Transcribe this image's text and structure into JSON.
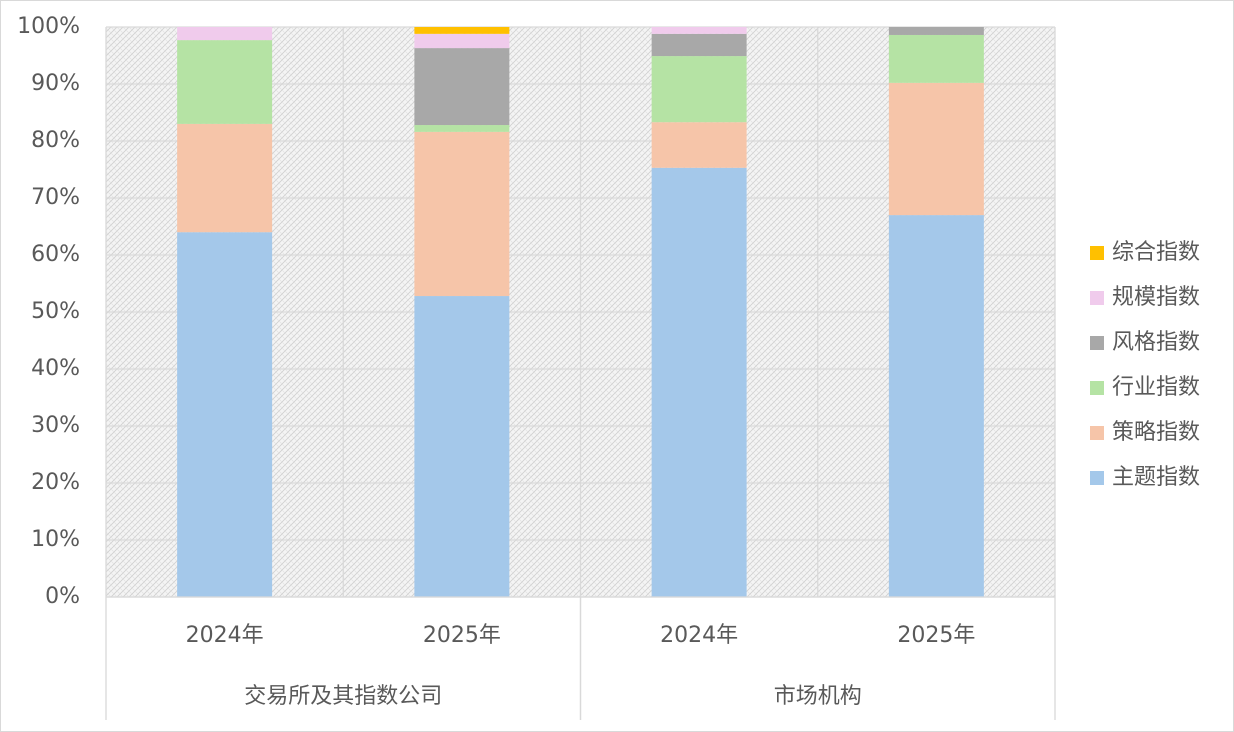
{
  "chart_data": {
    "type": "stacked_bar",
    "groups": [
      {
        "label": "交易所及其指数公司",
        "categories": [
          "2024年",
          "2025年"
        ]
      },
      {
        "label": "市场机构",
        "categories": [
          "2024年",
          "2025年"
        ]
      }
    ],
    "series": [
      {
        "name": "主题指数",
        "color": "#a4c8ea",
        "values": [
          64.0,
          52.8,
          75.3,
          67.0
        ]
      },
      {
        "name": "策略指数",
        "color": "#f6c5a9",
        "values": [
          19.0,
          28.8,
          8.0,
          23.2
        ]
      },
      {
        "name": "行业指数",
        "color": "#b5e3a4",
        "values": [
          14.7,
          1.2,
          11.6,
          8.4
        ]
      },
      {
        "name": "风格指数",
        "color": "#a8a8a8",
        "values": [
          0,
          13.5,
          3.9,
          1.4
        ]
      },
      {
        "name": "规模指数",
        "color": "#f0cbec",
        "values": [
          2.3,
          2.5,
          1.2,
          0
        ]
      },
      {
        "name": "综合指数",
        "color": "#ffc000",
        "values": [
          0,
          1.2,
          0,
          0
        ]
      }
    ],
    "ylim": [
      0,
      100
    ],
    "yticks": [
      {
        "value": 0,
        "label": "0%"
      },
      {
        "value": 10,
        "label": "10%"
      },
      {
        "value": 20,
        "label": "20%"
      },
      {
        "value": 30,
        "label": "30%"
      },
      {
        "value": 40,
        "label": "40%"
      },
      {
        "value": 50,
        "label": "50%"
      },
      {
        "value": 60,
        "label": "60%"
      },
      {
        "value": 70,
        "label": "70%"
      },
      {
        "value": 80,
        "label": "80%"
      },
      {
        "value": 90,
        "label": "90%"
      },
      {
        "value": 100,
        "label": "100%"
      }
    ],
    "grid": true,
    "legend": "right"
  }
}
